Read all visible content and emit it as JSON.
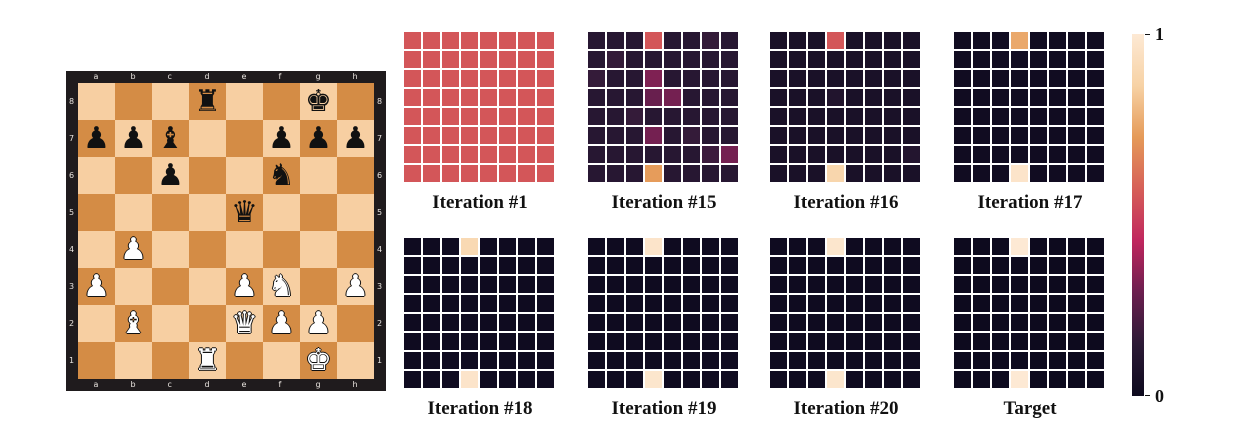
{
  "board": {
    "files": [
      "a",
      "b",
      "c",
      "d",
      "e",
      "f",
      "g",
      "h"
    ],
    "ranks": [
      "8",
      "7",
      "6",
      "5",
      "4",
      "3",
      "2",
      "1"
    ],
    "light_color": "#f7cfa2",
    "dark_color": "#d48c45",
    "frame_color": "#1f1b1d",
    "pieces": [
      {
        "sq": "d8",
        "name": "black-rook-icon",
        "glyph": "♜",
        "color": "black"
      },
      {
        "sq": "g8",
        "name": "black-king-icon",
        "glyph": "♚",
        "color": "black"
      },
      {
        "sq": "a7",
        "name": "black-pawn-icon",
        "glyph": "♟",
        "color": "black"
      },
      {
        "sq": "b7",
        "name": "black-pawn-icon",
        "glyph": "♟",
        "color": "black"
      },
      {
        "sq": "c7",
        "name": "black-bishop-icon",
        "glyph": "♝",
        "color": "black"
      },
      {
        "sq": "f7",
        "name": "black-pawn-icon",
        "glyph": "♟",
        "color": "black"
      },
      {
        "sq": "g7",
        "name": "black-pawn-icon",
        "glyph": "♟",
        "color": "black"
      },
      {
        "sq": "h7",
        "name": "black-pawn-icon",
        "glyph": "♟",
        "color": "black"
      },
      {
        "sq": "c6",
        "name": "black-pawn-icon",
        "glyph": "♟",
        "color": "black"
      },
      {
        "sq": "f6",
        "name": "black-knight-icon",
        "glyph": "♞",
        "color": "black"
      },
      {
        "sq": "e5",
        "name": "black-queen-icon",
        "glyph": "♛",
        "color": "black"
      },
      {
        "sq": "b4",
        "name": "white-pawn-icon",
        "glyph": "♟",
        "color": "white"
      },
      {
        "sq": "a3",
        "name": "white-pawn-icon",
        "glyph": "♟",
        "color": "white"
      },
      {
        "sq": "e3",
        "name": "white-pawn-icon",
        "glyph": "♟",
        "color": "white"
      },
      {
        "sq": "f3",
        "name": "white-knight-icon",
        "glyph": "♞",
        "color": "white"
      },
      {
        "sq": "h3",
        "name": "white-pawn-icon",
        "glyph": "♟",
        "color": "white"
      },
      {
        "sq": "b2",
        "name": "white-bishop-icon",
        "glyph": "♝",
        "color": "white"
      },
      {
        "sq": "e2",
        "name": "white-queen-icon",
        "glyph": "♛",
        "color": "white"
      },
      {
        "sq": "f2",
        "name": "white-pawn-icon",
        "glyph": "♟",
        "color": "white"
      },
      {
        "sq": "g2",
        "name": "white-pawn-icon",
        "glyph": "♟",
        "color": "white"
      },
      {
        "sq": "d1",
        "name": "white-rook-icon",
        "glyph": "♜",
        "color": "white"
      },
      {
        "sq": "g1",
        "name": "white-king-icon",
        "glyph": "♚",
        "color": "white"
      }
    ]
  },
  "heatmaps": [
    {
      "label": "Iteration #1",
      "fill": 0.55,
      "highlights": []
    },
    {
      "label": "Iteration #15",
      "fill": 0.12,
      "highlights": [
        {
          "r": 0,
          "c": 3,
          "v": 0.55
        },
        {
          "r": 2,
          "c": 3,
          "v": 0.32
        },
        {
          "r": 3,
          "c": 3,
          "v": 0.28
        },
        {
          "r": 3,
          "c": 4,
          "v": 0.3
        },
        {
          "r": 5,
          "c": 3,
          "v": 0.3
        },
        {
          "r": 6,
          "c": 7,
          "v": 0.3
        },
        {
          "r": 1,
          "c": 1,
          "v": 0.16
        },
        {
          "r": 4,
          "c": 2,
          "v": 0.16
        },
        {
          "r": 6,
          "c": 6,
          "v": 0.18
        },
        {
          "r": 2,
          "c": 0,
          "v": 0.16
        },
        {
          "r": 0,
          "c": 6,
          "v": 0.16
        },
        {
          "r": 5,
          "c": 5,
          "v": 0.16
        },
        {
          "r": 7,
          "c": 3,
          "v": 0.72
        }
      ]
    },
    {
      "label": "Iteration #16",
      "fill": 0.06,
      "highlights": [
        {
          "r": 0,
          "c": 3,
          "v": 0.55
        },
        {
          "r": 7,
          "c": 3,
          "v": 0.88
        },
        {
          "r": 6,
          "c": 7,
          "v": 0.1
        },
        {
          "r": 3,
          "c": 3,
          "v": 0.09
        }
      ]
    },
    {
      "label": "Iteration #17",
      "fill": 0.02,
      "highlights": [
        {
          "r": 0,
          "c": 3,
          "v": 0.75
        },
        {
          "r": 7,
          "c": 3,
          "v": 0.97
        }
      ]
    },
    {
      "label": "Iteration #18",
      "fill": 0.01,
      "highlights": [
        {
          "r": 0,
          "c": 3,
          "v": 0.9
        },
        {
          "r": 7,
          "c": 3,
          "v": 0.97
        }
      ]
    },
    {
      "label": "Iteration #19",
      "fill": 0.01,
      "highlights": [
        {
          "r": 0,
          "c": 3,
          "v": 0.97
        },
        {
          "r": 7,
          "c": 3,
          "v": 0.98
        }
      ]
    },
    {
      "label": "Iteration #20",
      "fill": 0.01,
      "highlights": [
        {
          "r": 0,
          "c": 3,
          "v": 0.98
        },
        {
          "r": 7,
          "c": 3,
          "v": 0.98
        }
      ]
    },
    {
      "label": "Target",
      "fill": 0.0,
      "highlights": [
        {
          "r": 0,
          "c": 3,
          "v": 1.0
        },
        {
          "r": 7,
          "c": 3,
          "v": 1.0
        }
      ]
    }
  ],
  "colorbar": {
    "stops": [
      "#0d0a1e",
      "#2c1a36",
      "#6b1f4f",
      "#c0265e",
      "#d65f58",
      "#e59a58",
      "#f7d2a5",
      "#fde9d4"
    ],
    "max_label": "1",
    "min_label": "0"
  }
}
